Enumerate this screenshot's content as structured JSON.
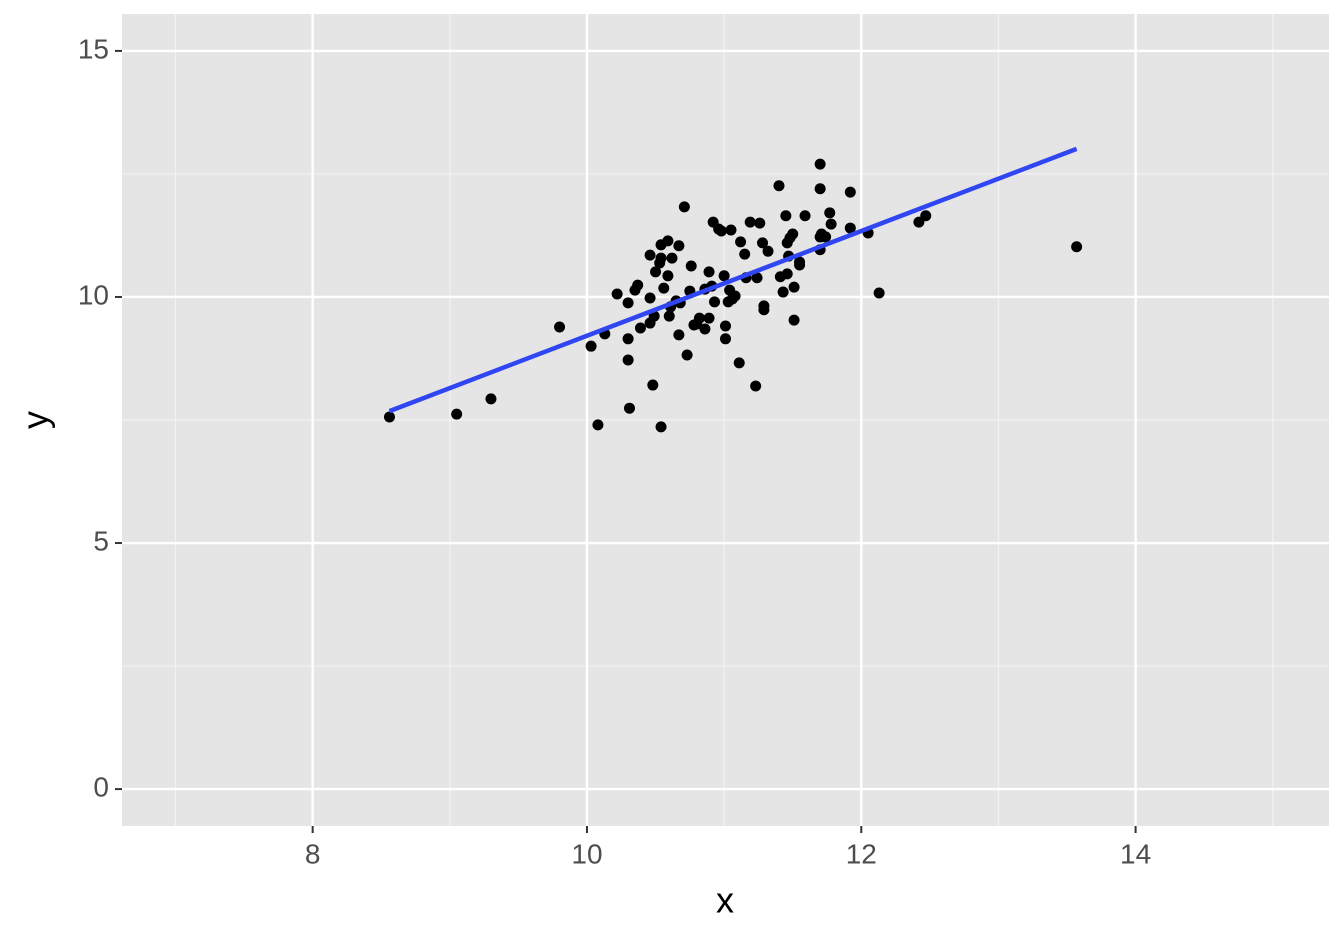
{
  "chart_data": {
    "type": "scatter",
    "x_label": "x",
    "y_label": "y",
    "xlim": [
      6.61,
      15.41
    ],
    "ylim": [
      -0.75,
      15.75
    ],
    "xticks": [
      8,
      10,
      12,
      14
    ],
    "yticks": [
      0,
      5,
      10,
      15
    ],
    "x_minor_ticks": [
      7,
      9,
      11,
      13,
      15
    ],
    "y_minor_ticks": [
      2.5,
      7.5,
      12.5
    ],
    "grid": true,
    "points": {
      "color": "#000000",
      "x": [
        8.56,
        9.05,
        9.3,
        9.8,
        10.03,
        10.08,
        10.13,
        10.22,
        10.3,
        10.3,
        10.3,
        10.31,
        10.35,
        10.37,
        10.39,
        10.46,
        10.46,
        10.46,
        10.48,
        10.49,
        10.5,
        10.53,
        10.54,
        10.54,
        10.54,
        10.56,
        10.59,
        10.59,
        10.6,
        10.61,
        10.62,
        10.65,
        10.67,
        10.67,
        10.68,
        10.71,
        10.73,
        10.75,
        10.76,
        10.78,
        10.8,
        10.82,
        10.86,
        10.86,
        10.89,
        10.89,
        10.91,
        10.92,
        10.93,
        10.96,
        10.98,
        11.0,
        11.01,
        11.01,
        11.03,
        11.04,
        11.05,
        11.06,
        11.08,
        11.11,
        11.12,
        11.15,
        11.16,
        11.19,
        11.23,
        11.24,
        11.26,
        11.28,
        11.29,
        11.29,
        11.32,
        11.4,
        11.41,
        11.43,
        11.45,
        11.46,
        11.46,
        11.47,
        11.48,
        11.5,
        11.51,
        11.51,
        11.55,
        11.55,
        11.59,
        11.7,
        11.7,
        11.7,
        11.7,
        11.71,
        11.74,
        11.77,
        11.78,
        11.92,
        11.92,
        12.05,
        12.13,
        12.42,
        12.47,
        13.57
      ],
      "y": [
        7.56,
        7.62,
        7.93,
        9.39,
        9.0,
        7.4,
        9.25,
        10.06,
        9.88,
        9.15,
        8.72,
        7.74,
        10.14,
        10.24,
        9.37,
        9.98,
        9.47,
        10.85,
        8.21,
        9.61,
        10.51,
        10.69,
        11.06,
        10.79,
        7.36,
        10.18,
        11.14,
        10.43,
        9.61,
        9.8,
        10.79,
        9.92,
        11.04,
        9.23,
        9.88,
        11.83,
        8.82,
        10.12,
        10.63,
        9.43,
        9.45,
        9.57,
        9.35,
        10.16,
        10.51,
        9.57,
        10.22,
        11.52,
        9.9,
        11.38,
        11.34,
        10.43,
        9.41,
        9.15,
        9.9,
        10.14,
        11.36,
        9.96,
        10.02,
        8.66,
        11.12,
        10.87,
        10.39,
        11.52,
        8.19,
        10.39,
        11.5,
        11.1,
        9.74,
        9.82,
        10.93,
        12.26,
        10.41,
        10.1,
        11.65,
        11.1,
        10.47,
        10.83,
        11.2,
        11.28,
        10.2,
        9.53,
        10.65,
        10.71,
        11.65,
        12.7,
        12.2,
        10.96,
        11.22,
        11.28,
        11.22,
        11.71,
        11.48,
        12.13,
        11.4,
        11.3,
        10.08,
        11.52,
        11.65,
        11.02
      ]
    },
    "fit_line": {
      "color": "#3046f2",
      "x": [
        8.56,
        13.57
      ],
      "y": [
        7.68,
        13.01
      ]
    }
  }
}
